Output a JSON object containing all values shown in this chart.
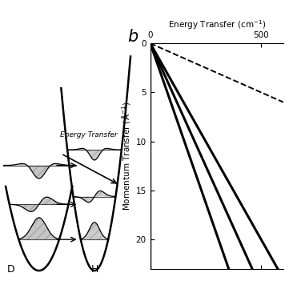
{
  "bg_color": "#ffffff",
  "title_partial": "Ener",
  "panel_b_label": "b",
  "ylabel": "Momentum Transfer (Å⁻¹)",
  "x_ticks": [
    0,
    500
  ],
  "y_ticks": [
    0,
    5,
    10,
    15,
    20
  ],
  "xlim": [
    0,
    600
  ],
  "ylim_max": 23,
  "solid_lines": [
    {
      "slope": 0.04,
      "lw": 2.2
    },
    {
      "slope": 0.05,
      "lw": 2.2
    },
    {
      "slope": 0.065,
      "lw": 2.2
    }
  ],
  "dashed_line": {
    "slope": 0.01,
    "lw": 1.4
  },
  "left_arrow_text": "Energy Transfer",
  "label_D": "D",
  "label_H": "H"
}
